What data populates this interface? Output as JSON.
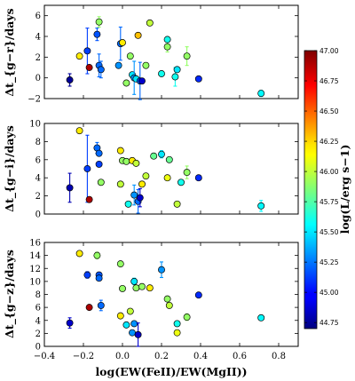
{
  "chart_data": {
    "type": "scatter",
    "xlabel": "log(EW(FeII)/EW(MgII))",
    "x_ticks": [
      "−0.4",
      "−0.2",
      "0.0",
      "0.2",
      "0.4",
      "0.6",
      "0.8"
    ],
    "xlim": [
      -0.4,
      0.9
    ],
    "colorbar": {
      "label": "log(L/erg s−1)",
      "range": [
        44.7,
        47.0
      ],
      "ticks": [
        "44.75",
        "45.00",
        "45.25",
        "45.50",
        "45.75",
        "46.00",
        "46.25",
        "46.50",
        "46.75",
        "47.00"
      ]
    },
    "panels": [
      {
        "ylabel": "Δt_{g−r}/days",
        "ylim": [
          -2,
          7
        ],
        "y_ticks": [
          "−2",
          "0",
          "2",
          "4",
          "6"
        ],
        "points": [
          {
            "x": -0.27,
            "y": -0.2,
            "yerr": 0.6,
            "c": 44.75
          },
          {
            "x": -0.22,
            "y": 2.1,
            "yerr": 0,
            "c": 46.2
          },
          {
            "x": -0.18,
            "y": 2.6,
            "yerr": 2.2,
            "c": 45.1
          },
          {
            "x": -0.17,
            "y": 1.0,
            "yerr": 0,
            "c": 46.9
          },
          {
            "x": -0.13,
            "y": 4.2,
            "yerr": 0.6,
            "c": 45.15
          },
          {
            "x": -0.12,
            "y": 5.4,
            "yerr": 0.5,
            "c": 45.9
          },
          {
            "x": -0.12,
            "y": 1.2,
            "yerr": 1.1,
            "c": 45.2
          },
          {
            "x": -0.11,
            "y": 0.8,
            "yerr": 0.8,
            "c": 45.2
          },
          {
            "x": -0.01,
            "y": 3.3,
            "yerr": 1.6,
            "c": 45.2
          },
          {
            "x": 0.0,
            "y": 3.4,
            "yerr": 0,
            "c": 46.2
          },
          {
            "x": -0.02,
            "y": 1.2,
            "yerr": 0,
            "c": 45.3
          },
          {
            "x": 0.02,
            "y": -0.5,
            "yerr": 0,
            "c": 45.9
          },
          {
            "x": 0.04,
            "y": 2.1,
            "yerr": 0,
            "c": 45.9
          },
          {
            "x": 0.05,
            "y": 0.3,
            "yerr": 0,
            "c": 45.5
          },
          {
            "x": 0.06,
            "y": 0.0,
            "yerr": 1.6,
            "c": 45.3
          },
          {
            "x": 0.07,
            "y": -0.1,
            "yerr": 0,
            "c": 45.5
          },
          {
            "x": 0.08,
            "y": 4.1,
            "yerr": 0,
            "c": 46.3
          },
          {
            "x": 0.09,
            "y": -0.3,
            "yerr": 1.8,
            "c": 45.2
          },
          {
            "x": 0.1,
            "y": -0.3,
            "yerr": 0,
            "c": 44.85
          },
          {
            "x": 0.12,
            "y": 1.2,
            "yerr": 0,
            "c": 45.9
          },
          {
            "x": 0.14,
            "y": 5.3,
            "yerr": 0,
            "c": 46.0
          },
          {
            "x": 0.2,
            "y": 0.4,
            "yerr": 0,
            "c": 45.6
          },
          {
            "x": 0.23,
            "y": 3.0,
            "yerr": 0.5,
            "c": 45.9
          },
          {
            "x": 0.23,
            "y": 3.7,
            "yerr": 0,
            "c": 45.6
          },
          {
            "x": 0.27,
            "y": 0.1,
            "yerr": 0.9,
            "c": 45.6
          },
          {
            "x": 0.28,
            "y": 0.8,
            "yerr": 0,
            "c": 45.5
          },
          {
            "x": 0.33,
            "y": 2.1,
            "yerr": 0.9,
            "c": 45.9
          },
          {
            "x": 0.39,
            "y": -0.1,
            "yerr": 0,
            "c": 45.05
          },
          {
            "x": 0.71,
            "y": -1.5,
            "yerr": 0.3,
            "c": 45.55
          }
        ]
      },
      {
        "ylabel": "Δt_{g−i}/days",
        "ylim": [
          0,
          10
        ],
        "y_ticks": [
          "0",
          "2",
          "4",
          "6",
          "8",
          "10"
        ],
        "points": [
          {
            "x": -0.27,
            "y": 2.9,
            "yerr": 1.6,
            "c": 44.8
          },
          {
            "x": -0.22,
            "y": 9.2,
            "yerr": 0,
            "c": 46.2
          },
          {
            "x": -0.18,
            "y": 5.0,
            "yerr": 3.7,
            "c": 45.1
          },
          {
            "x": -0.17,
            "y": 1.6,
            "yerr": 0,
            "c": 46.9
          },
          {
            "x": -0.13,
            "y": 7.3,
            "yerr": 0.6,
            "c": 45.2
          },
          {
            "x": -0.12,
            "y": 6.7,
            "yerr": 0,
            "c": 45.2
          },
          {
            "x": -0.12,
            "y": 5.5,
            "yerr": 0,
            "c": 45.1
          },
          {
            "x": -0.11,
            "y": 3.5,
            "yerr": 0,
            "c": 45.9
          },
          {
            "x": -0.01,
            "y": 7.0,
            "yerr": 0,
            "c": 46.2
          },
          {
            "x": 0.0,
            "y": 5.9,
            "yerr": 0,
            "c": 45.9
          },
          {
            "x": -0.01,
            "y": 3.3,
            "yerr": 0,
            "c": 46.0
          },
          {
            "x": 0.02,
            "y": 5.8,
            "yerr": 0,
            "c": 45.9
          },
          {
            "x": 0.03,
            "y": 1.1,
            "yerr": 0,
            "c": 45.6
          },
          {
            "x": 0.05,
            "y": 5.9,
            "yerr": 0,
            "c": 46.2
          },
          {
            "x": 0.06,
            "y": 2.1,
            "yerr": 1.1,
            "c": 45.3
          },
          {
            "x": 0.07,
            "y": 5.6,
            "yerr": 0,
            "c": 46.0
          },
          {
            "x": 0.08,
            "y": 1.4,
            "yerr": 1.3,
            "c": 45.2
          },
          {
            "x": 0.09,
            "y": 1.8,
            "yerr": 1.0,
            "c": 44.85
          },
          {
            "x": 0.1,
            "y": 3.3,
            "yerr": 0,
            "c": 46.2
          },
          {
            "x": 0.12,
            "y": 4.2,
            "yerr": 0,
            "c": 46.0
          },
          {
            "x": 0.16,
            "y": 6.4,
            "yerr": 0,
            "c": 45.8
          },
          {
            "x": 0.2,
            "y": 6.6,
            "yerr": 0.4,
            "c": 45.5
          },
          {
            "x": 0.23,
            "y": 4.0,
            "yerr": 0,
            "c": 46.1
          },
          {
            "x": 0.24,
            "y": 6.0,
            "yerr": 0,
            "c": 45.8
          },
          {
            "x": 0.28,
            "y": 1.1,
            "yerr": 0,
            "c": 46.0
          },
          {
            "x": 0.3,
            "y": 3.5,
            "yerr": 0,
            "c": 45.6
          },
          {
            "x": 0.33,
            "y": 4.6,
            "yerr": 0.7,
            "c": 45.9
          },
          {
            "x": 0.39,
            "y": 4.0,
            "yerr": 0,
            "c": 45.05
          },
          {
            "x": 0.71,
            "y": 0.9,
            "yerr": 0.6,
            "c": 45.55
          }
        ]
      },
      {
        "ylabel": "Δt_{g−z}/days",
        "ylim": [
          0,
          16
        ],
        "y_ticks": [
          "0",
          "2",
          "4",
          "6",
          "8",
          "10",
          "12",
          "14",
          "16"
        ],
        "points": [
          {
            "x": -0.27,
            "y": 3.6,
            "yerr": 0.8,
            "c": 44.85
          },
          {
            "x": -0.22,
            "y": 14.3,
            "yerr": 0,
            "c": 46.2
          },
          {
            "x": -0.18,
            "y": 11.0,
            "yerr": 0.5,
            "c": 45.1
          },
          {
            "x": -0.17,
            "y": 6.0,
            "yerr": 0,
            "c": 46.9
          },
          {
            "x": -0.13,
            "y": 14.0,
            "yerr": 0.5,
            "c": 45.9
          },
          {
            "x": -0.12,
            "y": 11.0,
            "yerr": 0,
            "c": 45.15
          },
          {
            "x": -0.12,
            "y": 10.5,
            "yerr": 0,
            "c": 45.2
          },
          {
            "x": -0.11,
            "y": 6.3,
            "yerr": 0.8,
            "c": 45.2
          },
          {
            "x": -0.01,
            "y": 12.7,
            "yerr": 0,
            "c": 45.9
          },
          {
            "x": 0.0,
            "y": 8.9,
            "yerr": 0,
            "c": 45.9
          },
          {
            "x": -0.01,
            "y": 4.7,
            "yerr": 0,
            "c": 46.2
          },
          {
            "x": 0.02,
            "y": 3.3,
            "yerr": 0,
            "c": 45.5
          },
          {
            "x": 0.04,
            "y": 5.4,
            "yerr": 0,
            "c": 46.0
          },
          {
            "x": 0.05,
            "y": 2.1,
            "yerr": 0,
            "c": 45.3
          },
          {
            "x": 0.06,
            "y": 10.0,
            "yerr": 0.5,
            "c": 45.5
          },
          {
            "x": 0.06,
            "y": 3.5,
            "yerr": 0,
            "c": 45.3
          },
          {
            "x": 0.07,
            "y": 9.0,
            "yerr": 0,
            "c": 45.9
          },
          {
            "x": 0.08,
            "y": 1.8,
            "yerr": 1.8,
            "c": 44.85
          },
          {
            "x": 0.1,
            "y": 9.2,
            "yerr": 0,
            "c": 45.9
          },
          {
            "x": 0.14,
            "y": 9.0,
            "yerr": 0,
            "c": 46.2
          },
          {
            "x": 0.2,
            "y": 11.8,
            "yerr": 1.2,
            "c": 45.3
          },
          {
            "x": 0.23,
            "y": 7.3,
            "yerr": 0,
            "c": 45.9
          },
          {
            "x": 0.24,
            "y": 6.3,
            "yerr": 0,
            "c": 46.0
          },
          {
            "x": 0.28,
            "y": 3.5,
            "yerr": 0,
            "c": 45.6
          },
          {
            "x": 0.28,
            "y": 2.1,
            "yerr": 0,
            "c": 46.1
          },
          {
            "x": 0.33,
            "y": 4.5,
            "yerr": 0.5,
            "c": 45.9
          },
          {
            "x": 0.39,
            "y": 7.9,
            "yerr": 0,
            "c": 45.05
          },
          {
            "x": 0.71,
            "y": 4.4,
            "yerr": 0,
            "c": 45.55
          }
        ]
      }
    ]
  }
}
